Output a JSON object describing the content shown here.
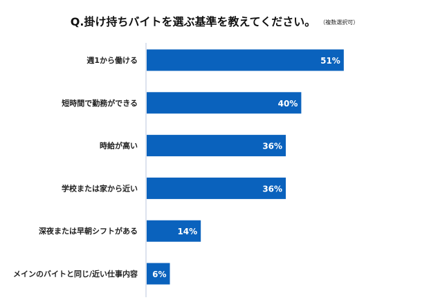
{
  "chart_data": {
    "type": "bar",
    "orientation": "horizontal",
    "title": "Q.掛け持ちバイトを選ぶ基準を教えてください。",
    "subtitle": "（複数選択可）",
    "categories": [
      "週1から働ける",
      "短時間で勤務ができる",
      "時給が高い",
      "学校または家から近い",
      "深夜または早朝シフトがある",
      "メインのバイトと同じ/近い仕事内容"
    ],
    "values": [
      51,
      40,
      36,
      36,
      14,
      6
    ],
    "value_labels": [
      "51%",
      "40%",
      "36%",
      "36%",
      "14%",
      "6%"
    ],
    "unit": "%",
    "xlim": [
      0,
      70
    ],
    "grid": false,
    "legend": "none",
    "colors": {
      "bar": "#0a62bd",
      "axis": "#dde3ee",
      "label_text": "#222222",
      "value_text": "#ffffff"
    }
  }
}
